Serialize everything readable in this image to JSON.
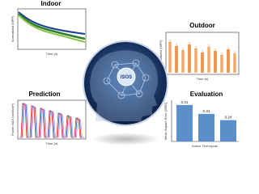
{
  "indoor": {
    "title": "Indoor",
    "y_label": "Normalized (MPP)",
    "x_label": "Time (h)"
  },
  "outdoor": {
    "title": "Outdoor",
    "y_label": "Normalized (MPP)",
    "x_label": "Time (h)"
  },
  "prediction": {
    "title": "Prediction",
    "y_label": "Power MAX (mW/cm²)",
    "x_label": "Time (h)"
  },
  "center": {
    "label": "ISOS"
  },
  "evaluation": {
    "title": "Evaluation",
    "y_label": "Mean Square Error (MSE)",
    "x_label": "Indoor Test Inputs",
    "values": [
      0.41,
      0.31,
      0.24
    ],
    "color": "#5b8fc9"
  }
}
